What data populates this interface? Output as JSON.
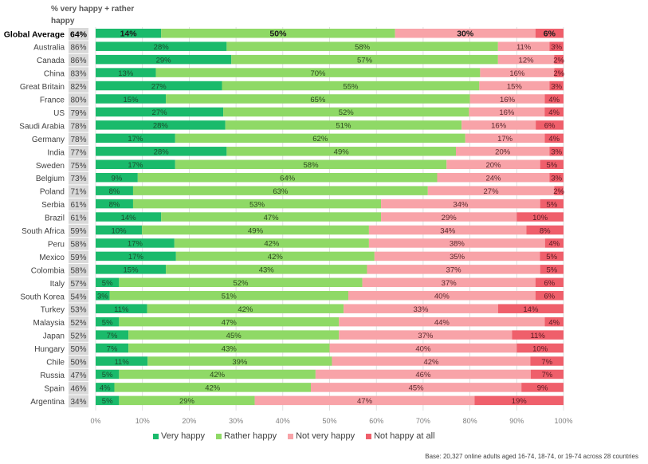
{
  "chart_data": {
    "type": "bar",
    "orientation": "horizontal-stacked-100",
    "title": "",
    "column_header": "% very happy + rather happy",
    "xlabel": "",
    "ylabel": "",
    "xlim": [
      0,
      100
    ],
    "x_ticks": [
      "0%",
      "10%",
      "20%",
      "30%",
      "40%",
      "50%",
      "60%",
      "70%",
      "80%",
      "90%",
      "100%"
    ],
    "grid": true,
    "legend_position": "bottom",
    "categories": [
      "Global Average",
      "Australia",
      "Canada",
      "China",
      "Great Britain",
      "France",
      "US",
      "Saudi Arabia",
      "Germany",
      "India",
      "Sweden",
      "Belgium",
      "Poland",
      "Serbia",
      "Brazil",
      "South Africa",
      "Peru",
      "Mexico",
      "Colombia",
      "Italy",
      "South Korea",
      "Turkey",
      "Malaysia",
      "Japan",
      "Hungary",
      "Chile",
      "Russia",
      "Spain",
      "Argentina"
    ],
    "happy_totals": [
      "64%",
      "86%",
      "86%",
      "83%",
      "82%",
      "80%",
      "79%",
      "78%",
      "78%",
      "77%",
      "75%",
      "73%",
      "71%",
      "61%",
      "61%",
      "59%",
      "58%",
      "59%",
      "58%",
      "57%",
      "54%",
      "53%",
      "52%",
      "52%",
      "50%",
      "50%",
      "47%",
      "46%",
      "34%"
    ],
    "highlight_category": "Global Average",
    "series": [
      {
        "name": "Very happy",
        "color": "#1aba6b",
        "label_color": "#1a4d2e",
        "values": [
          14,
          28,
          29,
          13,
          27,
          15,
          27,
          28,
          17,
          28,
          17,
          9,
          8,
          8,
          14,
          10,
          17,
          17,
          15,
          5,
          3,
          11,
          5,
          7,
          7,
          11,
          5,
          4,
          5
        ]
      },
      {
        "name": "Rather happy",
        "color": "#8fd966",
        "label_color": "#2d4a1e",
        "values": [
          50,
          58,
          57,
          70,
          55,
          65,
          52,
          51,
          62,
          49,
          58,
          64,
          63,
          53,
          47,
          49,
          42,
          42,
          43,
          52,
          51,
          42,
          47,
          45,
          43,
          39,
          42,
          42,
          29
        ]
      },
      {
        "name": "Not very happy",
        "color": "#f8a3a8",
        "label_color": "#5a2a2e",
        "values": [
          30,
          11,
          12,
          16,
          15,
          16,
          16,
          16,
          17,
          20,
          20,
          24,
          27,
          34,
          29,
          34,
          38,
          35,
          37,
          37,
          40,
          33,
          44,
          37,
          40,
          42,
          46,
          45,
          47
        ]
      },
      {
        "name": "Not happy at all",
        "color": "#ef5f6b",
        "label_color": "#5a1a22",
        "values": [
          6,
          3,
          2,
          2,
          3,
          4,
          4,
          6,
          4,
          3,
          5,
          3,
          2,
          5,
          10,
          8,
          4,
          5,
          5,
          6,
          6,
          14,
          4,
          11,
          10,
          7,
          7,
          9,
          19
        ]
      }
    ]
  },
  "footnote": "Base: 20,327 online adults aged 16-74, 18-74, or 19-74 across 28 countries"
}
